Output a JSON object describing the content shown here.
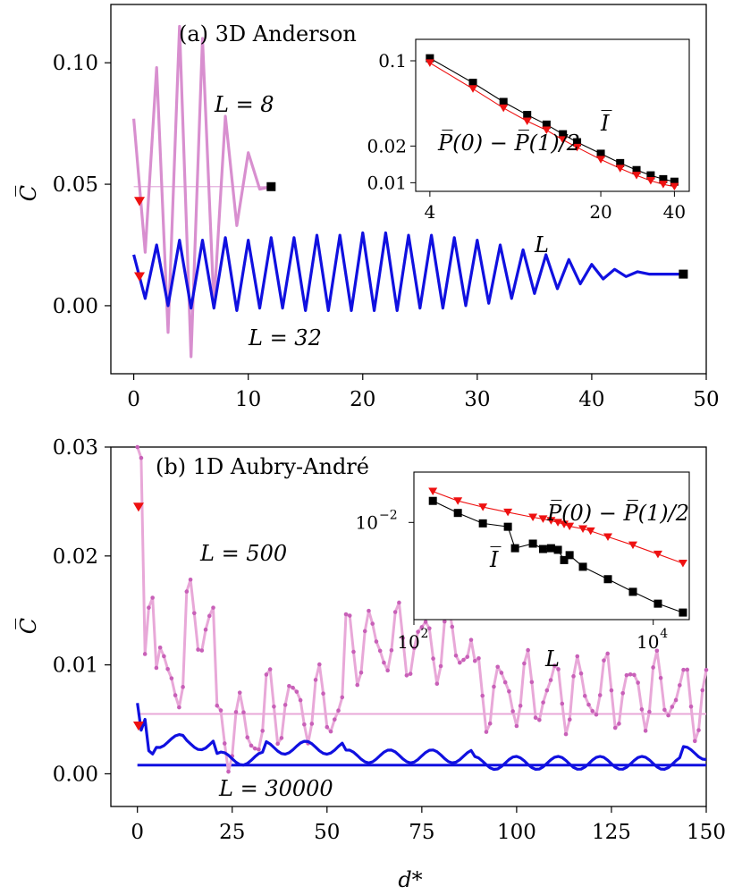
{
  "chart_data": [
    {
      "type": "line",
      "title": "(a) 3D Anderson",
      "xlabel": "",
      "ylabel": "C̅",
      "xlim": [
        -2,
        50
      ],
      "ylim": [
        -0.028,
        0.124
      ],
      "xticks": [
        0,
        10,
        20,
        30,
        40,
        50
      ],
      "yticks": [
        0.0,
        0.05,
        0.1
      ],
      "ytick_labels": [
        "0.00",
        "0.05",
        "0.10"
      ],
      "series": [
        {
          "name": "L = 8",
          "color": "#d88fcf",
          "x": [
            0,
            1,
            2,
            3,
            4,
            5,
            6,
            7,
            8,
            9,
            10,
            11,
            12
          ],
          "y": [
            0.077,
            0.022,
            0.098,
            -0.011,
            0.115,
            -0.021,
            0.11,
            0.0,
            0.078,
            0.033,
            0.063,
            0.048,
            0.049
          ],
          "baseline": 0.049
        },
        {
          "name": "L = 32",
          "color": "#1010e0",
          "x": [
            0,
            1,
            2,
            3,
            4,
            5,
            6,
            7,
            8,
            9,
            10,
            11,
            12,
            13,
            14,
            15,
            16,
            17,
            18,
            19,
            20,
            21,
            22,
            23,
            24,
            25,
            26,
            27,
            28,
            29,
            30,
            31,
            32,
            33,
            34,
            35,
            36,
            37,
            38,
            39,
            40,
            41,
            42,
            43,
            44,
            45,
            46,
            47,
            48
          ],
          "y": [
            0.021,
            0.003,
            0.025,
            0.0,
            0.027,
            -0.001,
            0.027,
            -0.001,
            0.028,
            -0.002,
            0.027,
            -0.001,
            0.028,
            -0.001,
            0.028,
            -0.002,
            0.029,
            -0.002,
            0.029,
            -0.002,
            0.03,
            -0.002,
            0.03,
            -0.002,
            0.029,
            -0.001,
            0.029,
            -0.001,
            0.028,
            0.0,
            0.027,
            0.001,
            0.025,
            0.003,
            0.023,
            0.005,
            0.021,
            0.007,
            0.019,
            0.009,
            0.017,
            0.011,
            0.015,
            0.012,
            0.014,
            0.013,
            0.013,
            0.013,
            0.013
          ]
        }
      ],
      "triangles": [
        {
          "x": 0.5,
          "y": 0.043
        },
        {
          "x": 0.5,
          "y": 0.012
        }
      ],
      "squares": [
        {
          "x": 12,
          "y": 0.049
        },
        {
          "x": 48,
          "y": 0.013
        }
      ],
      "annotations": [
        "L = 8",
        "L = 32"
      ],
      "inset": {
        "scale": "log-log",
        "xlabel": "L",
        "xlim": [
          3.5,
          46
        ],
        "ylim": [
          0.0085,
          0.15
        ],
        "xticks": [
          4,
          20,
          40
        ],
        "yticks": [
          0.01,
          0.02,
          0.1
        ],
        "ytick_labels": [
          "0.01",
          "0.02",
          "0.1"
        ],
        "series": [
          {
            "name": "I̅",
            "color": "#000000",
            "marker": "square",
            "x": [
              4,
              6,
              8,
              10,
              12,
              14,
              16,
              20,
              24,
              28,
              32,
              36,
              40
            ],
            "y": [
              0.105,
              0.066,
              0.046,
              0.036,
              0.03,
              0.025,
              0.0215,
              0.0173,
              0.0145,
              0.0127,
              0.0115,
              0.0107,
              0.0102
            ]
          },
          {
            "name": "P̅(0) − P̅(1)/2",
            "color": "#ee1111",
            "marker": "triangle",
            "x": [
              4,
              6,
              8,
              10,
              12,
              14,
              16,
              20,
              24,
              28,
              32,
              36,
              40
            ],
            "y": [
              0.096,
              0.059,
              0.041,
              0.032,
              0.027,
              0.0225,
              0.0195,
              0.0155,
              0.0131,
              0.0115,
              0.0104,
              0.0097,
              0.0093
            ]
          }
        ]
      }
    },
    {
      "type": "line",
      "title": "(b) 1D Aubry-André",
      "xlabel": "d*",
      "ylabel": "C̅",
      "xlim": [
        -7,
        150
      ],
      "ylim": [
        -0.003,
        0.03
      ],
      "xticks": [
        0,
        25,
        50,
        75,
        100,
        125,
        150
      ],
      "yticks": [
        0.0,
        0.01,
        0.02,
        0.03
      ],
      "ytick_labels": [
        "0.00",
        "0.01",
        "0.02",
        "0.03"
      ],
      "series": [
        {
          "name": "L = 500",
          "color": "#e8a8d8",
          "marker_color": "#c860b8",
          "baseline": 0.0055
        },
        {
          "name": "L = 30000",
          "color": "#1010e0",
          "baseline": 0.0008
        }
      ],
      "triangles": [
        {
          "x": 0.3,
          "y": 0.0245
        },
        {
          "x": 0.3,
          "y": 0.0044
        }
      ],
      "annotations": [
        "L = 500",
        "L = 30000"
      ],
      "inset": {
        "scale": "log-log",
        "xlabel": "L",
        "xlim": [
          100,
          20000
        ],
        "ylim": [
          0.0012,
          0.03
        ],
        "xticks": [
          100,
          10000
        ],
        "xtick_labels": [
          "10",
          "10"
        ],
        "xtick_exponents": [
          "2",
          "4"
        ],
        "yticks": [
          0.01
        ],
        "ytick_labels": [
          "10"
        ],
        "ytick_exponents": [
          "−2"
        ],
        "series": [
          {
            "name": "I̅",
            "color": "#000000",
            "marker": "square",
            "x": [
              144,
              233,
              377,
              610,
              700,
              987,
              1200,
              1400,
              1597,
              1800,
              2000,
              2584,
              4181,
              6765,
              10946,
              17711
            ],
            "y": [
              0.016,
              0.0123,
              0.0098,
              0.0091,
              0.0057,
              0.0063,
              0.0056,
              0.0057,
              0.0055,
              0.0044,
              0.0049,
              0.0038,
              0.0029,
              0.0022,
              0.0017,
              0.0014
            ]
          },
          {
            "name": "P̅(0) − P̅(1)/2",
            "color": "#ee1111",
            "marker": "triangle",
            "x": [
              144,
              233,
              377,
              610,
              987,
              1200,
              1400,
              1597,
              1800,
              2000,
              2584,
              3000,
              4181,
              6765,
              10946,
              17711
            ],
            "y": [
              0.0197,
              0.016,
              0.014,
              0.0125,
              0.0112,
              0.0108,
              0.0104,
              0.01,
              0.0096,
              0.0092,
              0.0087,
              0.0083,
              0.0073,
              0.0061,
              0.005,
              0.0041
            ]
          }
        ]
      }
    }
  ]
}
